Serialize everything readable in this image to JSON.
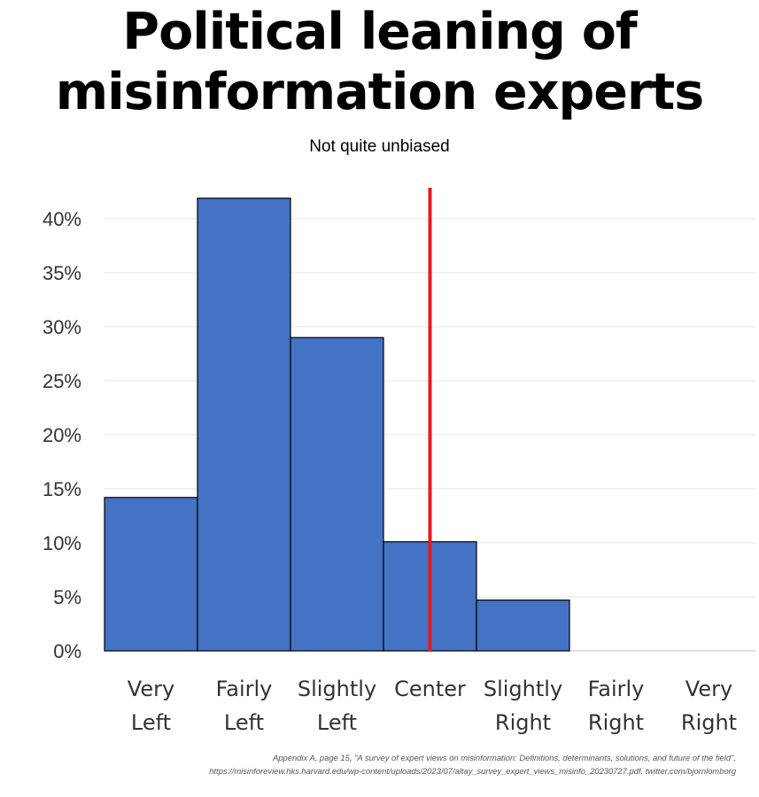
{
  "chart_data": {
    "type": "bar",
    "title": "Political leaning of misinformation experts",
    "subtitle": "Not quite unbiased",
    "categories": [
      [
        "Very",
        "Left"
      ],
      [
        "Fairly",
        "Left"
      ],
      [
        "Slightly",
        "Left"
      ],
      [
        "Center",
        ""
      ],
      [
        "Slightly",
        "Right"
      ],
      [
        "Fairly",
        "Right"
      ],
      [
        "Very",
        "Right"
      ]
    ],
    "values": [
      14.2,
      41.9,
      29.0,
      10.1,
      4.7,
      0,
      0
    ],
    "ylim": [
      0,
      40
    ],
    "yticks": [
      "0%",
      "5%",
      "10%",
      "15%",
      "20%",
      "25%",
      "30%",
      "35%",
      "40%"
    ],
    "ytick_values": [
      0,
      5,
      10,
      15,
      20,
      25,
      30,
      35,
      40
    ],
    "grid": true,
    "bar_color": "#4472c4",
    "marker_line": {
      "category": "Center",
      "color": "#e31a1c"
    }
  },
  "source": {
    "line1": "Appendix A, page 15, \"A survey of expert views on misinformation: Definitions, determinants, solutions, and future of the field\",",
    "line2": "https://misinforeview.hks.harvard.edu/wp-content/uploads/2023/07/altay_survey_expert_views_misinfo_20230727.pdf. twitter.com/bjornlomborg"
  }
}
